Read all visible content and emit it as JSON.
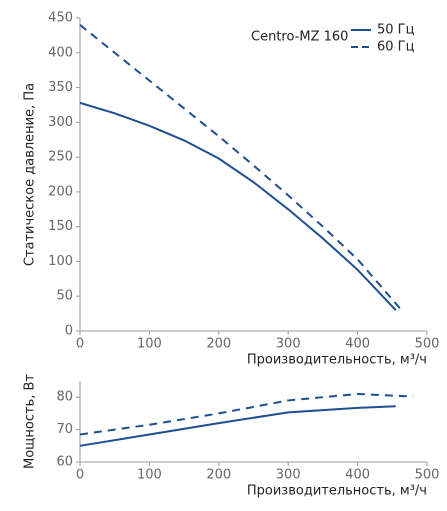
{
  "chart_data": [
    {
      "type": "line",
      "ylabel": "Статическое давление, Па",
      "xlabel": "Производительность, м³/ч",
      "xlim": [
        0,
        500
      ],
      "xticks": [
        0,
        100,
        200,
        300,
        400,
        500
      ],
      "ylim": [
        0,
        450
      ],
      "yticks": [
        0,
        50,
        100,
        150,
        200,
        250,
        300,
        350,
        400,
        450
      ],
      "legend_title": "Centro-MZ 160",
      "legend": "upper right",
      "series": [
        {
          "name": "50 Гц",
          "color": "#1d4f91",
          "dashed": false,
          "x": [
            0,
            50,
            100,
            150,
            200,
            250,
            300,
            350,
            400,
            455
          ],
          "values": [
            328,
            313,
            295,
            274,
            248,
            214,
            175,
            133,
            88,
            30
          ]
        },
        {
          "name": "60 Гц",
          "color": "#1d4f91",
          "dashed": true,
          "x": [
            0,
            50,
            100,
            150,
            200,
            250,
            300,
            350,
            400,
            465
          ],
          "values": [
            440,
            400,
            360,
            320,
            280,
            238,
            195,
            150,
            103,
            28
          ]
        }
      ]
    },
    {
      "type": "line",
      "ylabel": "Мощность, Вт",
      "xlabel": "Производительность, м³/ч",
      "xlim": [
        0,
        500
      ],
      "xticks": [
        0,
        100,
        200,
        300,
        400,
        500
      ],
      "ylim": [
        60,
        85
      ],
      "yticks": [
        60,
        70,
        80
      ],
      "series": [
        {
          "color": "#1d4f91",
          "dashed": false,
          "x": [
            0,
            100,
            200,
            300,
            400,
            455
          ],
          "values": [
            65,
            68.5,
            72,
            75.3,
            76.7,
            77.2
          ]
        },
        {
          "color": "#1d4f91",
          "dashed": true,
          "x": [
            0,
            100,
            200,
            300,
            400,
            480
          ],
          "values": [
            68.5,
            71.5,
            75,
            79,
            81,
            80.2
          ]
        }
      ]
    }
  ]
}
